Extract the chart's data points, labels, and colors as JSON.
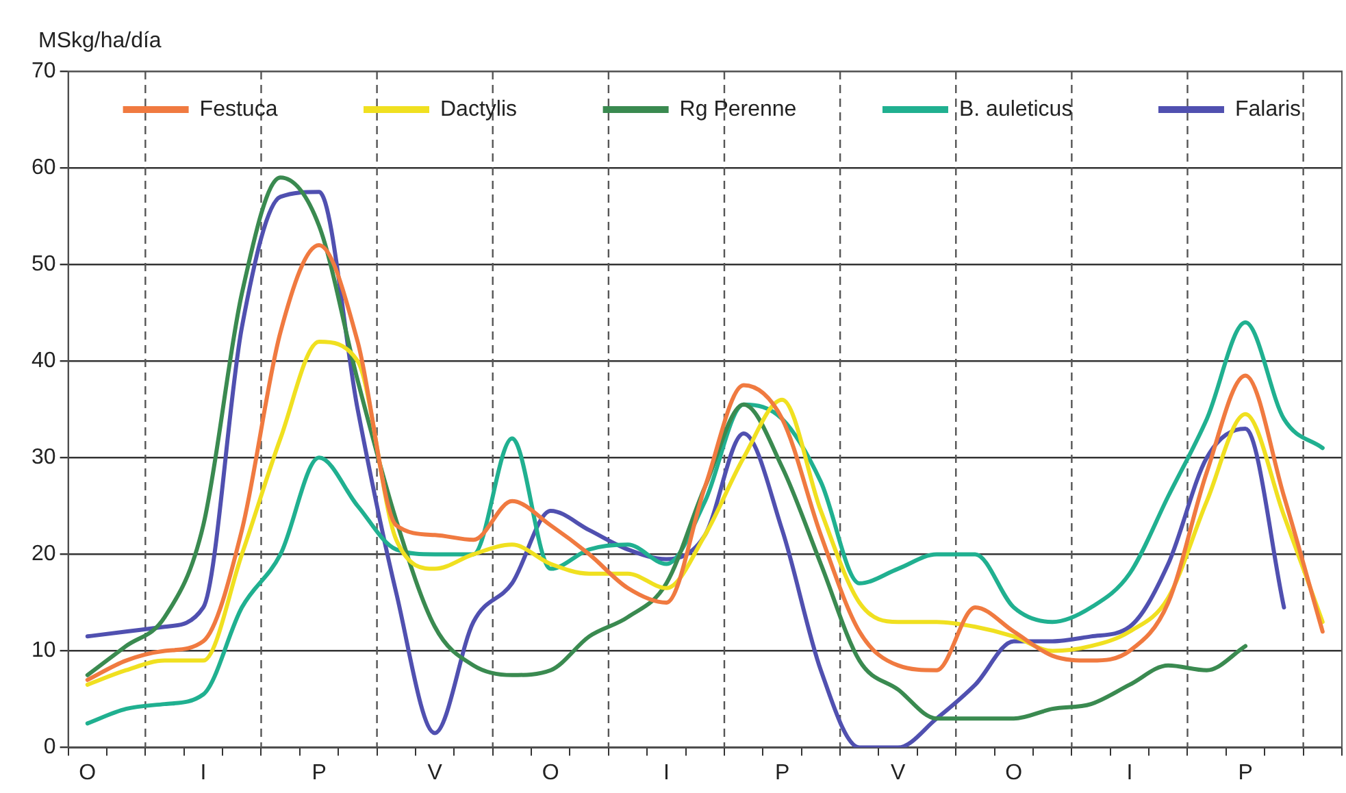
{
  "chart_data": {
    "type": "line",
    "ylabel": "MSkg/ha/día",
    "ylim": [
      0,
      70
    ],
    "yticks": [
      0,
      10,
      20,
      30,
      40,
      50,
      60,
      70
    ],
    "categories": [
      "O",
      null,
      null,
      "I",
      null,
      null,
      "P",
      null,
      null,
      "V",
      null,
      null,
      "O",
      null,
      null,
      "I",
      null,
      null,
      "P",
      null,
      null,
      "V",
      null,
      null,
      "O",
      null,
      null,
      "I",
      null,
      null,
      "P",
      null,
      null
    ],
    "grid": "y",
    "legend": "top",
    "marker": "none",
    "line_style": "solid",
    "series": [
      {
        "name": "Festuca",
        "color": "#f07a40",
        "values": [
          7,
          9,
          10,
          11,
          22.5,
          43,
          52,
          42,
          23,
          22,
          21.5,
          25.5,
          23,
          20,
          16.5,
          15,
          27,
          37.5,
          34,
          22,
          12,
          8.5,
          8,
          14.5,
          12,
          9.5,
          9,
          10,
          15,
          28.5,
          38.5,
          26,
          12
        ]
      },
      {
        "name": "Dactylis",
        "color": "#f0e020",
        "values": [
          6.5,
          8,
          9,
          9,
          20,
          32,
          42,
          40,
          21.5,
          18.5,
          20,
          21,
          19,
          18,
          18,
          16.5,
          22,
          30,
          36,
          24.5,
          15,
          13,
          13,
          12.5,
          11.5,
          10,
          10.5,
          12,
          15.5,
          25.5,
          34.5,
          24,
          13
        ]
      },
      {
        "name": "Rg Perenne",
        "color": "#3a8a50",
        "values": [
          7.5,
          10.5,
          13.5,
          23,
          47,
          59,
          54,
          38,
          23.5,
          12.5,
          8.5,
          7.5,
          8,
          11.5,
          13.5,
          17,
          27,
          35.5,
          29,
          19,
          9,
          6,
          3,
          3,
          3,
          4,
          4.5,
          6.5,
          8.5,
          8,
          10.5,
          null,
          null
        ]
      },
      {
        "name": "B. auleticus",
        "color": "#20b090",
        "values": [
          2.5,
          4,
          4.5,
          5.5,
          14.5,
          20,
          30,
          25,
          20.5,
          20,
          20,
          32,
          18.5,
          20.5,
          21,
          19,
          25.5,
          35.5,
          34,
          27.5,
          17,
          18.5,
          20,
          20,
          14.5,
          13,
          14.5,
          18,
          26,
          34,
          44,
          34,
          31
        ]
      },
      {
        "name": "Falaris",
        "color": "#5050b0",
        "values": [
          11.5,
          12,
          12.5,
          14.5,
          43.5,
          57,
          57.5,
          35,
          16,
          1.5,
          13,
          17,
          24.5,
          22.5,
          20.5,
          19.5,
          22,
          32.5,
          22.5,
          8,
          0,
          0,
          3,
          6.5,
          11,
          11,
          11.5,
          12.5,
          19,
          30,
          33,
          14.5,
          null
        ]
      }
    ]
  }
}
